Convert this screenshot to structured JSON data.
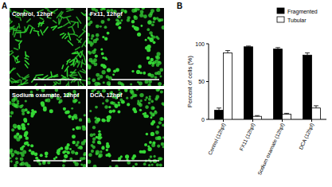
{
  "figure": {
    "panels": [
      {
        "label": "A",
        "images": [
          {
            "label": "Control, 12hpf"
          },
          {
            "label": "Fx11, 12hpf"
          },
          {
            "label": "Sodium oxamate, 12hpf"
          },
          {
            "label": "DCA, 12hpf"
          }
        ]
      },
      {
        "label": "B"
      }
    ]
  },
  "chart_data": {
    "type": "bar",
    "y_label": "Percent of cells (%)",
    "categories": [
      "Control (12hpf)",
      "FX11 (12hpf)",
      "Sodium oxamate (12hpf)",
      "DCA (12hpf)"
    ],
    "series": [
      {
        "name": "Fragmented",
        "color": "#000000",
        "values": [
          12,
          96,
          93,
          85
        ],
        "errors": [
          3,
          1,
          2,
          3
        ]
      },
      {
        "name": "Tubular",
        "color": "#ffffff",
        "values": [
          88,
          4,
          7,
          15
        ],
        "errors": [
          3,
          1,
          1,
          3
        ]
      }
    ],
    "ylim": [
      0,
      100
    ],
    "yticks": [
      0,
      50,
      100
    ],
    "legend": "top-right",
    "grid": false
  }
}
